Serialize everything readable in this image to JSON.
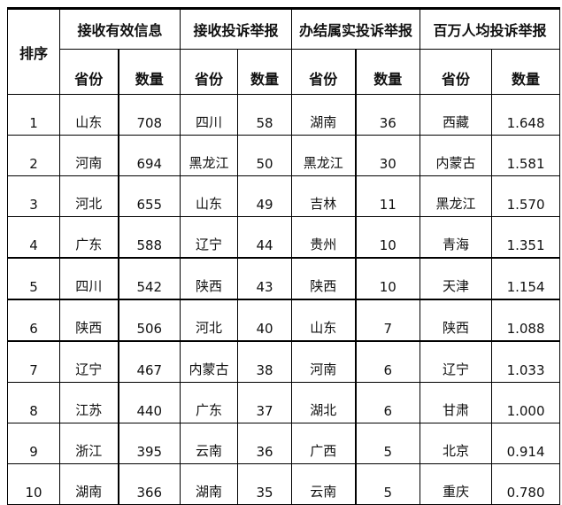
{
  "header": {
    "rank": "排序",
    "groups": [
      "接收有效信息",
      "接收投诉举报",
      "办结属实投诉举报",
      "百万人均投诉举报"
    ],
    "province": "省份",
    "count": "数量"
  },
  "rows": [
    {
      "rank": "1",
      "c": [
        [
          "山东",
          "708"
        ],
        [
          "四川",
          "58"
        ],
        [
          "湖南",
          "36"
        ],
        [
          "西藏",
          "1.648"
        ]
      ]
    },
    {
      "rank": "2",
      "c": [
        [
          "河南",
          "694"
        ],
        [
          "黑龙江",
          "50"
        ],
        [
          "黑龙江",
          "30"
        ],
        [
          "内蒙古",
          "1.581"
        ]
      ]
    },
    {
      "rank": "3",
      "c": [
        [
          "河北",
          "655"
        ],
        [
          "山东",
          "49"
        ],
        [
          "吉林",
          "11"
        ],
        [
          "黑龙江",
          "1.570"
        ]
      ]
    },
    {
      "rank": "4",
      "c": [
        [
          "广东",
          "588"
        ],
        [
          "辽宁",
          "44"
        ],
        [
          "贵州",
          "10"
        ],
        [
          "青海",
          "1.351"
        ]
      ]
    },
    {
      "rank": "5",
      "c": [
        [
          "四川",
          "542"
        ],
        [
          "陕西",
          "43"
        ],
        [
          "陕西",
          "10"
        ],
        [
          "天津",
          "1.154"
        ]
      ]
    },
    {
      "rank": "6",
      "c": [
        [
          "陕西",
          "506"
        ],
        [
          "河北",
          "40"
        ],
        [
          "山东",
          "7"
        ],
        [
          "陕西",
          "1.088"
        ]
      ]
    },
    {
      "rank": "7",
      "c": [
        [
          "辽宁",
          "467"
        ],
        [
          "内蒙古",
          "38"
        ],
        [
          "河南",
          "6"
        ],
        [
          "辽宁",
          "1.033"
        ]
      ]
    },
    {
      "rank": "8",
      "c": [
        [
          "江苏",
          "440"
        ],
        [
          "广东",
          "37"
        ],
        [
          "湖北",
          "6"
        ],
        [
          "甘肃",
          "1.000"
        ]
      ]
    },
    {
      "rank": "9",
      "c": [
        [
          "浙江",
          "395"
        ],
        [
          "云南",
          "36"
        ],
        [
          "广西",
          "5"
        ],
        [
          "北京",
          "0.914"
        ]
      ]
    },
    {
      "rank": "10",
      "c": [
        [
          "湖南",
          "366"
        ],
        [
          "湖南",
          "35"
        ],
        [
          "云南",
          "5"
        ],
        [
          "重庆",
          "0.780"
        ]
      ]
    }
  ]
}
